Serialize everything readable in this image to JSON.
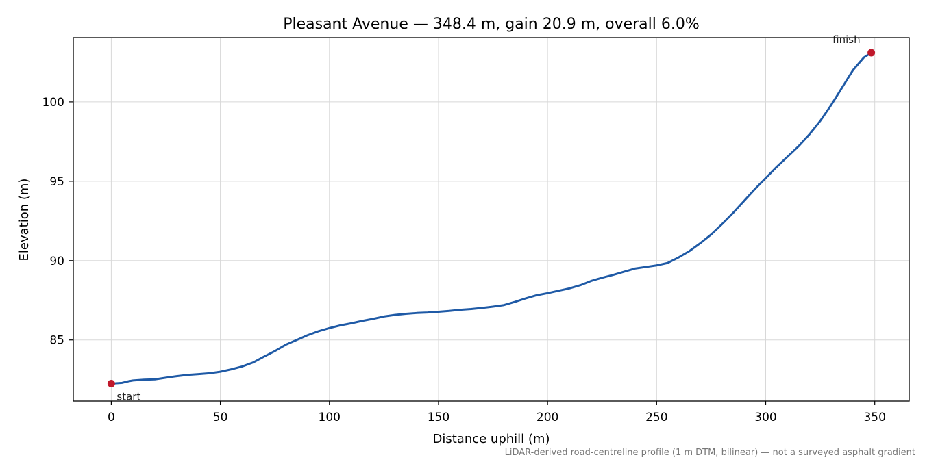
{
  "chart_data": {
    "type": "line",
    "title": "Pleasant Avenue — 348.4 m, gain 20.9 m, overall 6.0%",
    "xlabel": "Distance uphill (m)",
    "ylabel": "Elevation (m)",
    "xlim": [
      -17.4,
      365.8
    ],
    "ylim": [
      81.15,
      104.05
    ],
    "xticks": [
      0,
      50,
      100,
      150,
      200,
      250,
      300,
      350
    ],
    "yticks": [
      85,
      90,
      95,
      100
    ],
    "grid": true,
    "line_color": "#1f5aa6",
    "marker_color": "#c0182b",
    "series": [
      {
        "x": [
          0,
          5,
          8,
          10,
          15,
          20,
          25,
          30,
          35,
          40,
          45,
          50,
          55,
          60,
          65,
          70,
          75,
          80,
          85,
          90,
          95,
          100,
          105,
          110,
          115,
          120,
          125,
          130,
          135,
          140,
          145,
          150,
          155,
          160,
          165,
          170,
          175,
          180,
          185,
          190,
          195,
          200,
          205,
          210,
          215,
          220,
          225,
          230,
          235,
          240,
          245,
          250,
          255,
          260,
          265,
          270,
          275,
          280,
          285,
          290,
          295,
          300,
          305,
          310,
          315,
          320,
          325,
          330,
          335,
          340,
          345,
          348.4
        ],
        "y": [
          82.25,
          82.3,
          82.4,
          82.45,
          82.5,
          82.52,
          82.62,
          82.72,
          82.8,
          82.85,
          82.9,
          83.0,
          83.15,
          83.33,
          83.58,
          83.95,
          84.3,
          84.7,
          85.0,
          85.3,
          85.55,
          85.75,
          85.92,
          86.05,
          86.2,
          86.33,
          86.48,
          86.58,
          86.65,
          86.7,
          86.73,
          86.78,
          86.83,
          86.9,
          86.95,
          87.02,
          87.1,
          87.2,
          87.4,
          87.62,
          87.82,
          87.95,
          88.1,
          88.25,
          88.45,
          88.72,
          88.92,
          89.1,
          89.3,
          89.5,
          89.6,
          89.7,
          89.85,
          90.2,
          90.6,
          91.1,
          91.65,
          92.3,
          93.0,
          93.75,
          94.5,
          95.2,
          95.9,
          96.55,
          97.2,
          97.95,
          98.8,
          99.8,
          100.9,
          102.0,
          102.8,
          103.1
        ]
      }
    ],
    "annotations": [
      {
        "text": "start",
        "x": 0,
        "y": 82.25
      },
      {
        "text": "finish",
        "x": 348.4,
        "y": 103.1
      }
    ],
    "footnote": "LiDAR-derived road-centreline profile (1 m DTM, bilinear) — not a surveyed asphalt gradient"
  }
}
